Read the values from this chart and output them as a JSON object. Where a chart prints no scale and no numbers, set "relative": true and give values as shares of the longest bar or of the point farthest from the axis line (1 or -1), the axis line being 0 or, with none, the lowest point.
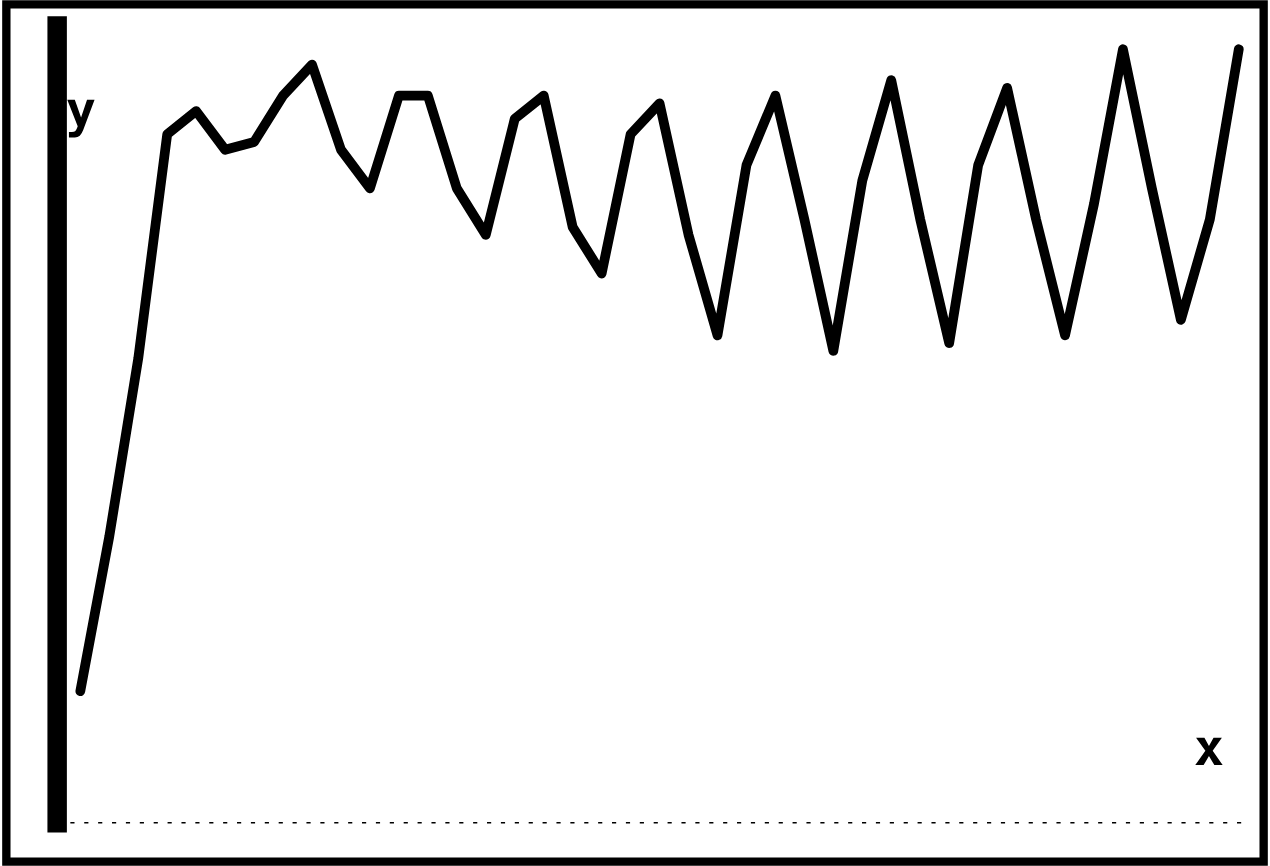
{
  "chart_data": {
    "type": "line",
    "relative": true,
    "xlabel": "x",
    "ylabel": "y",
    "grid": false,
    "legend": false,
    "categories": [
      null,
      null,
      null,
      null,
      null,
      null,
      null,
      null,
      null,
      null,
      null,
      null,
      null,
      null,
      null,
      null,
      null,
      null,
      null,
      null,
      null,
      null,
      null,
      null,
      null,
      null,
      null,
      null,
      null,
      null,
      null,
      null,
      null,
      null,
      null,
      null,
      null,
      null,
      null,
      null,
      null
    ],
    "series": [
      {
        "color": "#000000",
        "values": [
          0.17,
          0.37,
          0.6,
          0.89,
          0.92,
          0.87,
          0.88,
          0.94,
          0.98,
          0.87,
          0.82,
          0.94,
          0.94,
          0.82,
          0.76,
          0.91,
          0.94,
          0.77,
          0.71,
          0.89,
          0.93,
          0.76,
          0.63,
          0.85,
          0.94,
          0.78,
          0.61,
          0.83,
          0.96,
          0.78,
          0.62,
          0.85,
          0.95,
          0.78,
          0.63,
          0.8,
          1.0,
          0.82,
          0.65,
          0.78,
          1.0
        ]
      }
    ]
  }
}
